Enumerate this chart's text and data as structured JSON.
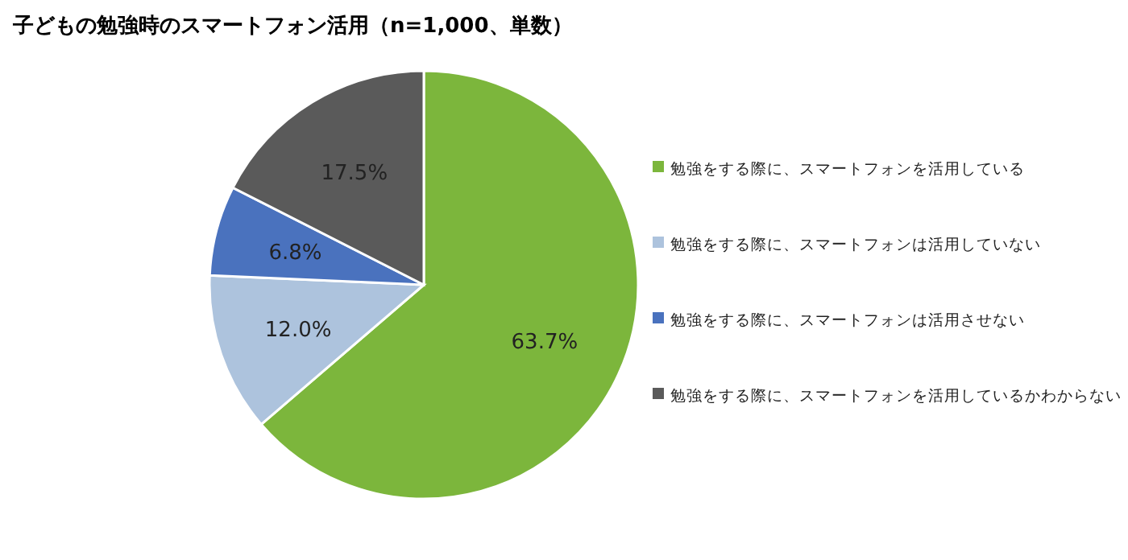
{
  "chart_data": {
    "type": "pie",
    "title": "子どもの勉強時のスマートフォン活用（n=1,000、単数）",
    "categories": [
      "勉強をする際に、スマートフォンを活用している",
      "勉強をする際に、スマートフォンは活用していない",
      "勉強をする際に、スマートフォンは活用させない",
      "勉強をする際に、スマートフォンを活用しているかわからない"
    ],
    "values": [
      63.7,
      12.0,
      6.8,
      17.5
    ],
    "colors": [
      "#7cb63c",
      "#adc3dd",
      "#4a72be",
      "#5a5a5a"
    ],
    "value_labels": [
      "63.7%",
      "12.0%",
      "6.8%",
      "17.5%"
    ],
    "legend": "right"
  }
}
